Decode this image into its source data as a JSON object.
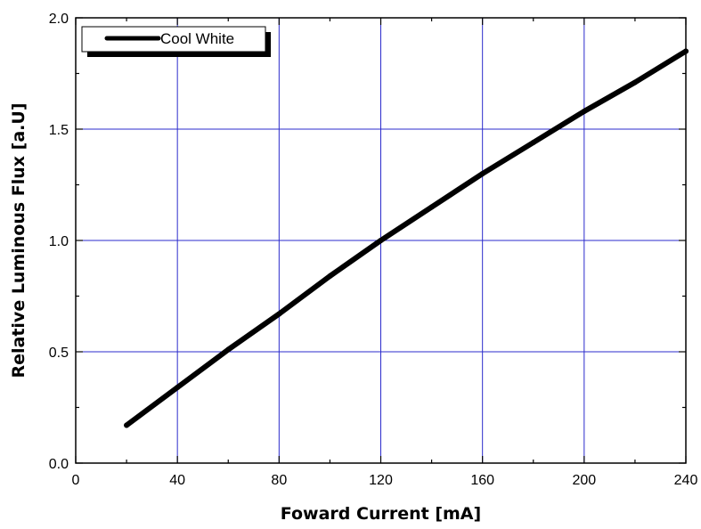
{
  "chart_data": {
    "type": "line",
    "title": "",
    "xlabel": "Foward Current [mA]",
    "ylabel": "Relative Luminous Flux [a.U]",
    "xlim": [
      0,
      240
    ],
    "ylim": [
      0.0,
      2.0
    ],
    "xticks": [
      0,
      40,
      80,
      120,
      160,
      200,
      240
    ],
    "xtick_labels": [
      "0",
      "40",
      "80",
      "120",
      "160",
      "200",
      "240"
    ],
    "yticks": [
      0.0,
      0.5,
      1.0,
      1.5,
      2.0
    ],
    "ytick_labels": [
      "0.0",
      "0.5",
      "1.0",
      "1.5",
      "2.0"
    ],
    "grid": true,
    "legend_position": "top-left",
    "colors": {
      "grid": "#2b2bcc",
      "line": "#000000",
      "frame": "#000000"
    },
    "series": [
      {
        "name": "Cool White",
        "x": [
          20,
          40,
          60,
          80,
          100,
          120,
          140,
          160,
          180,
          200,
          220,
          240
        ],
        "y": [
          0.17,
          0.34,
          0.51,
          0.67,
          0.84,
          1.0,
          1.15,
          1.3,
          1.44,
          1.58,
          1.71,
          1.85
        ]
      }
    ]
  }
}
